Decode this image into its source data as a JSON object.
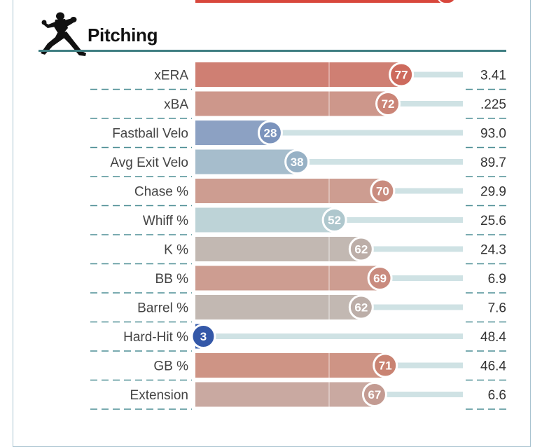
{
  "section": {
    "title": "Pitching",
    "icon": "pitcher-icon"
  },
  "colors": {
    "rule": "#3f7f82",
    "dash": "#4f8f96",
    "track": "#cfe2e4",
    "top_bar": "#d8473c"
  },
  "chart_data": {
    "type": "bar",
    "orientation": "horizontal",
    "title": "Pitching",
    "xlim": [
      0,
      100
    ],
    "categories": [
      "xERA",
      "xBA",
      "Fastball Velo",
      "Avg Exit Velo",
      "Chase %",
      "Whiff %",
      "K %",
      "BB %",
      "Barrel %",
      "Hard-Hit %",
      "GB %",
      "Extension"
    ],
    "values": [
      77,
      72,
      28,
      38,
      70,
      52,
      62,
      69,
      62,
      3,
      71,
      67
    ],
    "stat_values": [
      "3.41",
      ".225",
      "93.0",
      "89.7",
      "29.9",
      "25.6",
      "24.3",
      "6.9",
      "7.6",
      "48.4",
      "46.4",
      "6.6"
    ],
    "bar_colors": [
      "#cf7f73",
      "#cd978b",
      "#8ca1c3",
      "#a6bdcc",
      "#cd9d91",
      "#bdd3d7",
      "#c2b8b2",
      "#cd9d91",
      "#c2b8b2",
      "#3a5fad",
      "#ce9485",
      "#c9a9a1"
    ],
    "circle_colors": [
      "#cd6a5d",
      "#cb8577",
      "#7b93bc",
      "#97b1c5",
      "#c98b7e",
      "#aec7cd",
      "#bcaea8",
      "#c98b7e",
      "#bcaea8",
      "#3458a8",
      "#c98372",
      "#c39b92"
    ]
  }
}
